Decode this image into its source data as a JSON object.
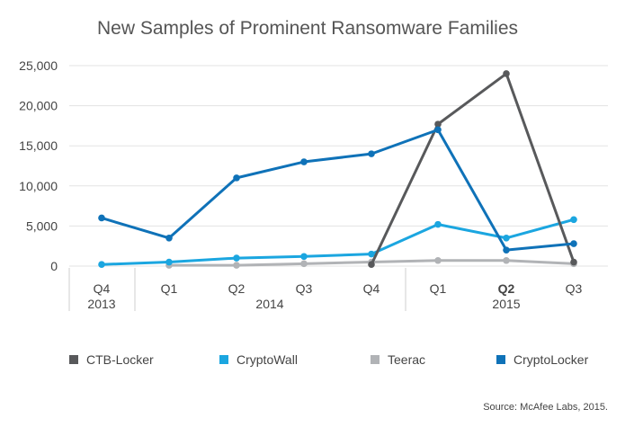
{
  "chart_data": {
    "type": "line",
    "title": "New Samples of Prominent Ransomware Families",
    "source": "Source: McAfee Labs, 2015.",
    "categories": [
      "Q4 2013",
      "Q1 2014",
      "Q2 2014",
      "Q3 2014",
      "Q4 2014",
      "Q1 2015",
      "Q2 2015",
      "Q3 2015"
    ],
    "x_quarters": [
      "Q4",
      "Q1",
      "Q2",
      "Q3",
      "Q4",
      "Q1",
      "Q2",
      "Q3"
    ],
    "x_years": [
      "2013",
      "2014",
      "2015"
    ],
    "ylim": [
      0,
      25000
    ],
    "yticks": [
      0,
      5000,
      10000,
      15000,
      20000,
      25000
    ],
    "ytick_labels": [
      "0",
      "5,000",
      "10,000",
      "15,000",
      "20,000",
      "25,000"
    ],
    "grid": true,
    "legend_position": "bottom",
    "series": [
      {
        "name": "CTB-Locker",
        "color": "#58595b",
        "values": [
          null,
          null,
          null,
          null,
          200,
          17700,
          24000,
          500
        ]
      },
      {
        "name": "CryptoWall",
        "color": "#1ba6e0",
        "values": [
          200,
          500,
          1000,
          1200,
          1500,
          5200,
          3500,
          5800
        ]
      },
      {
        "name": "Teerac",
        "color": "#b1b3b6",
        "values": [
          null,
          100,
          100,
          300,
          500,
          700,
          700,
          300
        ]
      },
      {
        "name": "CryptoLocker",
        "color": "#0f72b8",
        "values": [
          6000,
          3500,
          11000,
          13000,
          14000,
          17000,
          2000,
          2800
        ]
      }
    ]
  }
}
